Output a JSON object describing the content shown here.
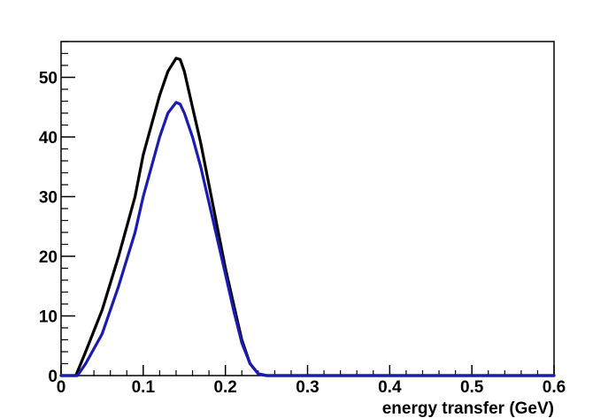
{
  "chart_data": {
    "type": "line",
    "title": "",
    "xlabel": "energy transfer (GeV)",
    "ylabel": "",
    "xlim": [
      0,
      0.6
    ],
    "ylim": [
      0,
      56
    ],
    "x_ticks": [
      0,
      0.1,
      0.2,
      0.3,
      0.4,
      0.5,
      0.6
    ],
    "x_tick_labels": [
      "0",
      "0.1",
      "0.2",
      "0.3",
      "0.4",
      "0.5",
      "0.6"
    ],
    "y_ticks": [
      0,
      10,
      20,
      30,
      40,
      50
    ],
    "y_tick_labels": [
      "0",
      "10",
      "20",
      "30",
      "40",
      "50"
    ],
    "grid": false,
    "legend": "none",
    "series": [
      {
        "color": "#000000",
        "x": [
          0,
          0.018,
          0.03,
          0.05,
          0.07,
          0.09,
          0.1,
          0.11,
          0.12,
          0.13,
          0.14,
          0.145,
          0.15,
          0.16,
          0.17,
          0.18,
          0.19,
          0.2,
          0.21,
          0.22,
          0.23,
          0.24,
          0.25,
          0.26,
          0.6
        ],
        "y": [
          0,
          0,
          4,
          11,
          20,
          30,
          37,
          42,
          47,
          51,
          53.2,
          53,
          51,
          45,
          39,
          32,
          25,
          18,
          12,
          6,
          2,
          0.3,
          0,
          0,
          0
        ]
      },
      {
        "color": "#1a1ab4",
        "x": [
          0,
          0.02,
          0.03,
          0.05,
          0.07,
          0.09,
          0.1,
          0.11,
          0.12,
          0.13,
          0.14,
          0.145,
          0.15,
          0.16,
          0.17,
          0.18,
          0.19,
          0.2,
          0.21,
          0.22,
          0.23,
          0.24,
          0.25,
          0.26,
          0.6
        ],
        "y": [
          0,
          0,
          2,
          7,
          15,
          24,
          30,
          35,
          40,
          44,
          45.8,
          45.5,
          44,
          40,
          35,
          29,
          23,
          17,
          11,
          5.5,
          2,
          0.3,
          0,
          0,
          0
        ]
      }
    ]
  }
}
